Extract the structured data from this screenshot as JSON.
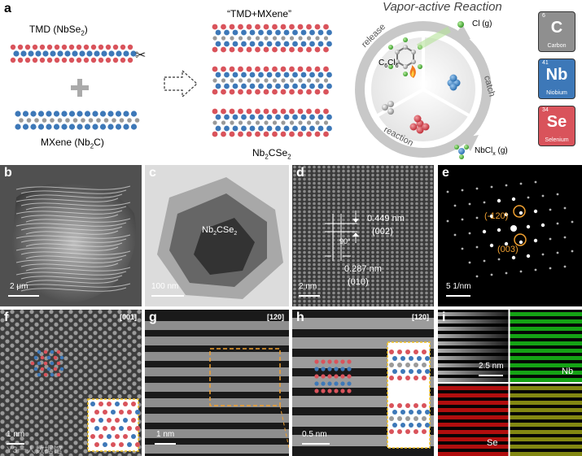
{
  "figure": {
    "panel_a": {
      "label": "a",
      "tmd_label": "TMD (NbSe",
      "tmd_sub": "2",
      "tmd_close": ")",
      "mxene_label": "MXene (Nb",
      "mxene_sub": "2",
      "mxene_close": "C)",
      "hetero_title": "“TMD+MXene”",
      "product_label": "Nb",
      "product_sub1": "2",
      "product_mid": "CSe",
      "product_sub2": "2",
      "vapor_title": "Vapor-active Reaction",
      "cycle": {
        "release": "release",
        "catch": "catch",
        "reaction": "reaction",
        "c6cl6": "C",
        "c6cl6_sub1": "6",
        "c6cl6_mid": "Cl",
        "c6cl6_sub2": "6",
        "cl_gas": "Cl (g)",
        "nbclx": "NbCl",
        "nbclx_sub": "x",
        "nbclx_tail": " (g)"
      },
      "elements": [
        {
          "number": "6",
          "symbol": "C",
          "name": "Carbon",
          "color": "#8f8f8f"
        },
        {
          "number": "41",
          "symbol": "Nb",
          "name": "Niobium",
          "color": "#3d78b8"
        },
        {
          "number": "34",
          "symbol": "Se",
          "name": "Selenium",
          "color": "#d9535b"
        }
      ]
    },
    "panel_b": {
      "label": "b",
      "scalebar": "2 μm"
    },
    "panel_c": {
      "label": "c",
      "scalebar": "100 nm",
      "annotation": "Nb",
      "annotation_sub1": "2",
      "annotation_mid": "CSe",
      "annotation_sub2": "2"
    },
    "panel_d": {
      "label": "d",
      "scalebar": "2 nm",
      "d1_value": "0.449 nm",
      "d1_plane": "(002)",
      "d2_value": "0.287 nm",
      "d2_plane": "(010)",
      "angle": "90°"
    },
    "panel_e": {
      "label": "e",
      "scalebar": "5 1/nm",
      "spot1": "(-120)",
      "spot2": "(003)"
    },
    "panel_f": {
      "label": "f",
      "zone_axis": "[001]",
      "scalebar": "1 nm",
      "watermark": "Y3一人数据馆"
    },
    "panel_g": {
      "label": "g",
      "zone_axis": "[120]",
      "scalebar": "1 nm"
    },
    "panel_h": {
      "label": "h",
      "zone_axis": "[120]",
      "scalebar": "0.5 nm"
    },
    "panel_i": {
      "label": "i",
      "scalebar": "2.5 nm",
      "nb_map": "Nb",
      "se_map": "Se"
    },
    "colors": {
      "se_atom": "#d9535b",
      "nb_atom": "#3d78b8",
      "c_atom": "#9a9a9a",
      "highlight": "#f0a030",
      "nb_map": "#19c019",
      "se_map": "#d01010"
    }
  }
}
